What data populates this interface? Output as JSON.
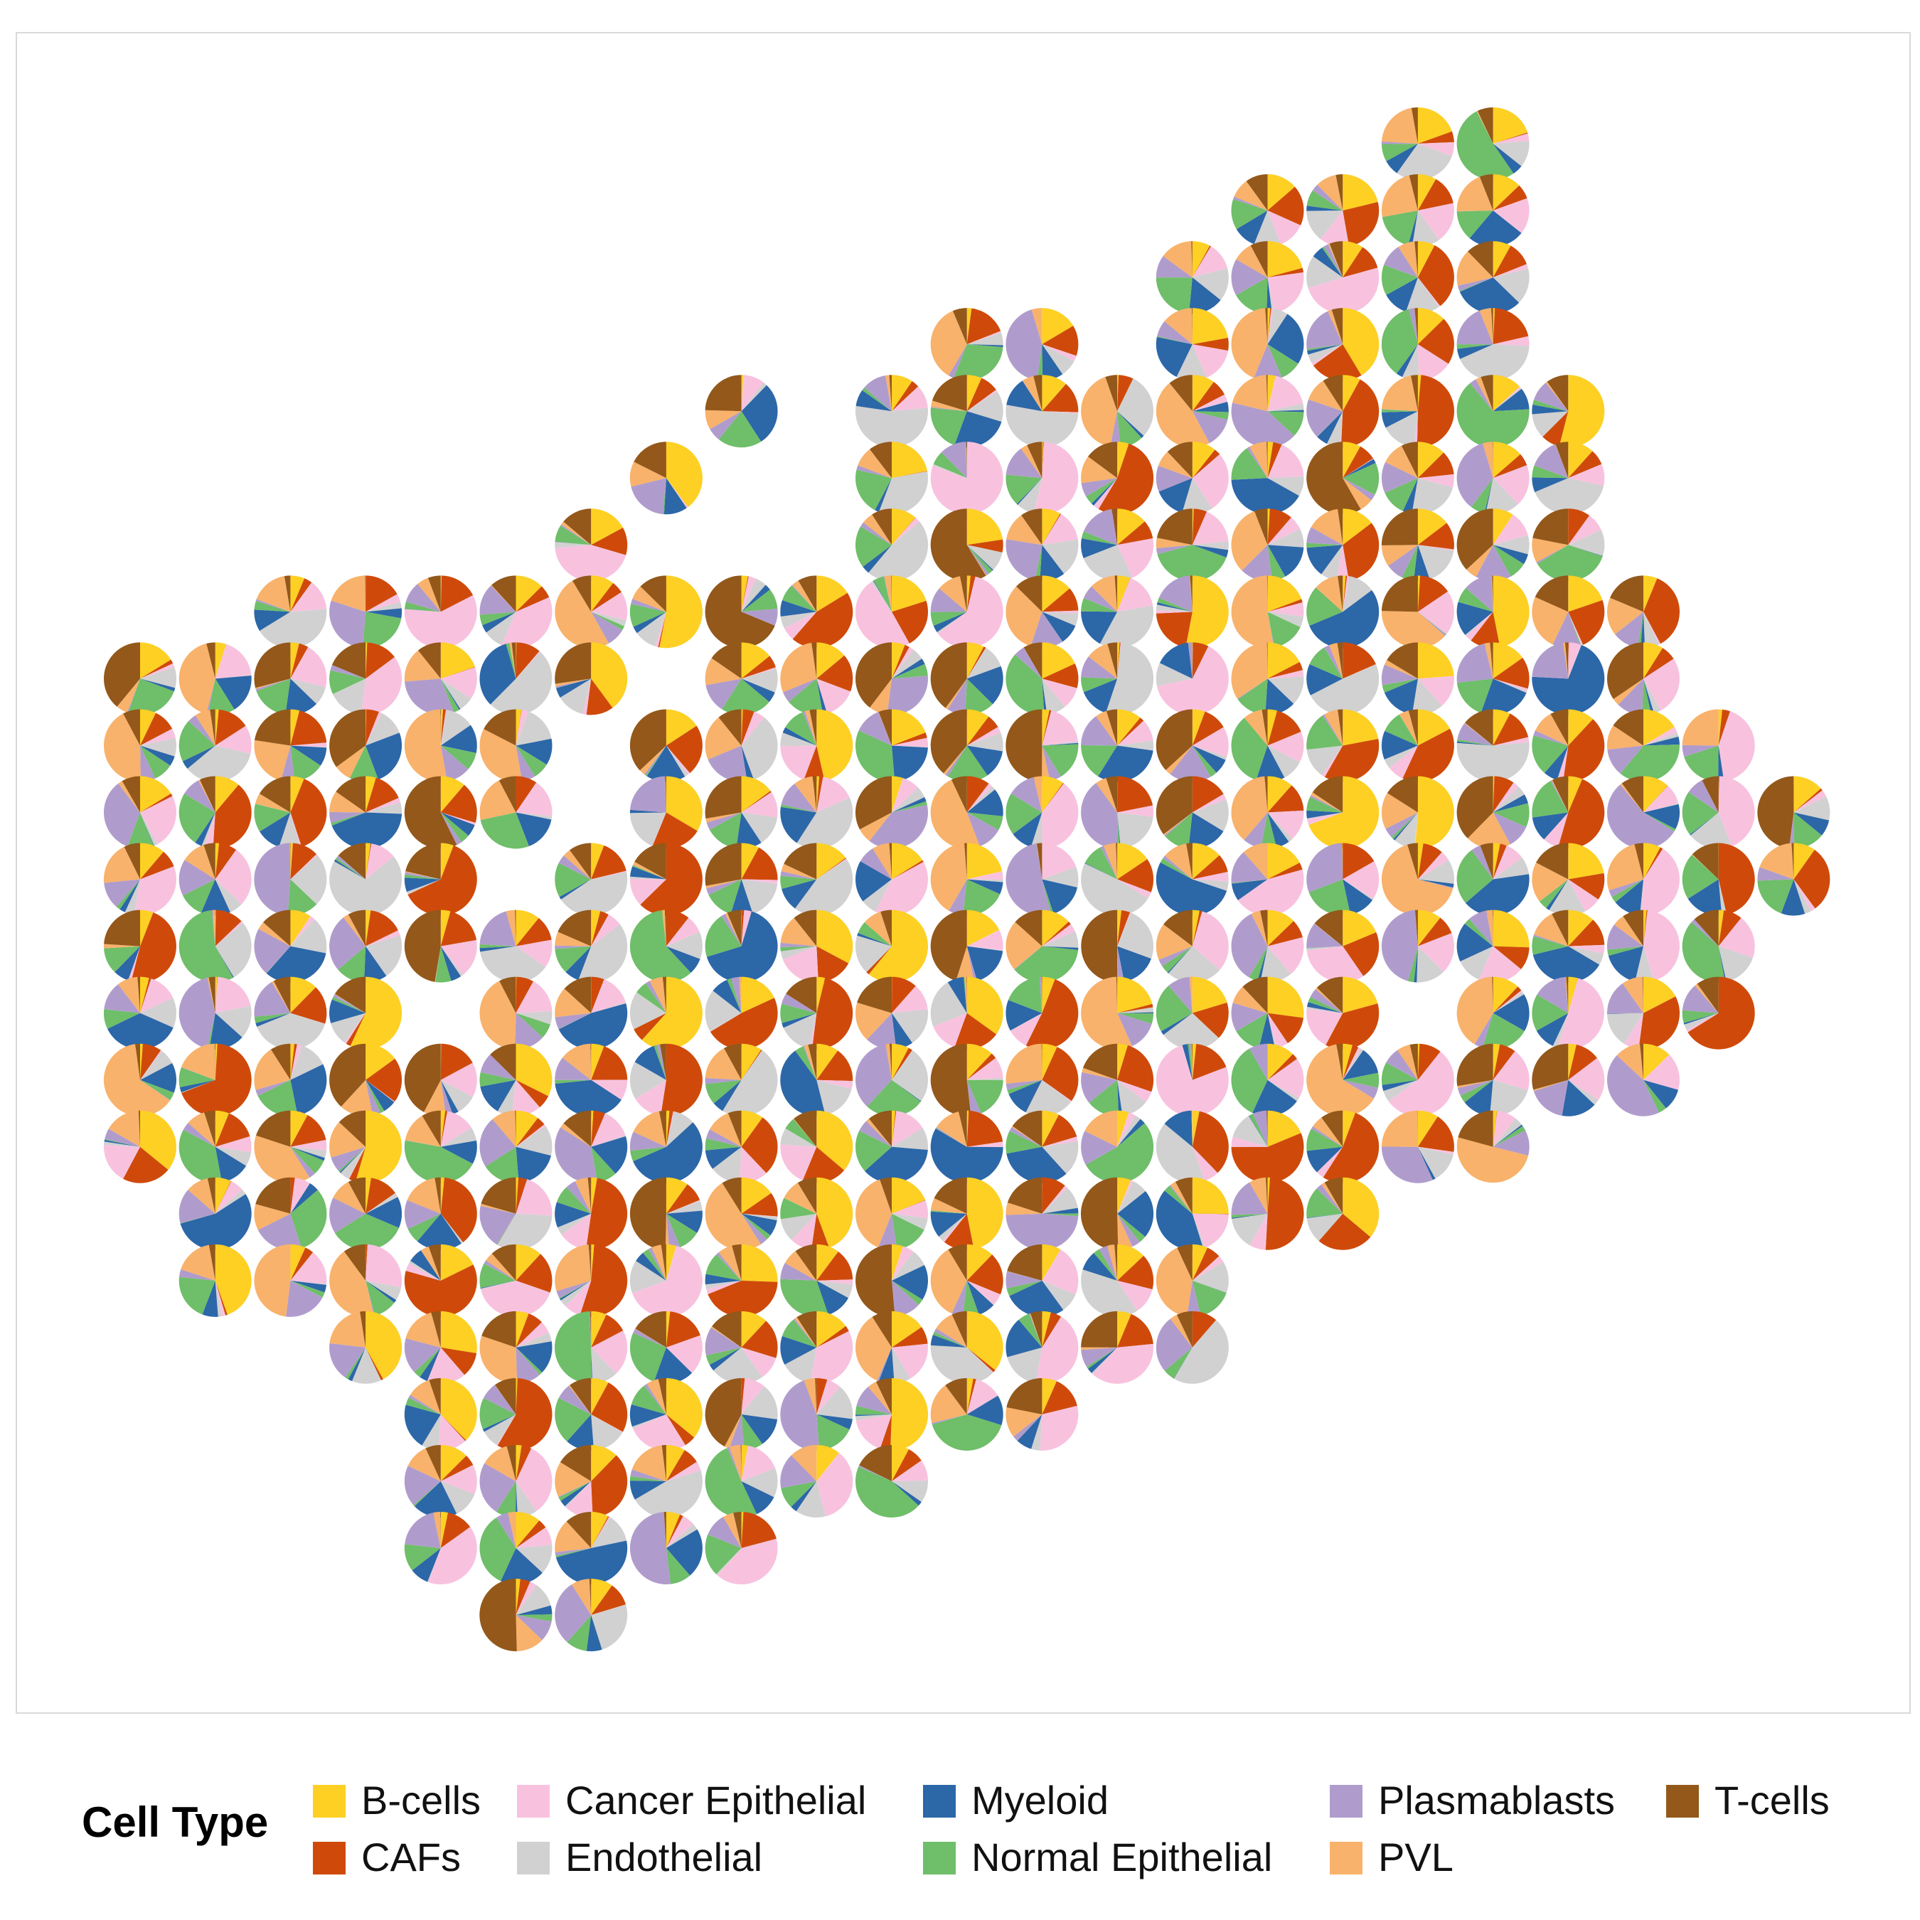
{
  "legend": {
    "title": "Cell Type",
    "entries": [
      {
        "label": "B-cells",
        "color": "#fdd023"
      },
      {
        "label": "CAFs",
        "color": "#cf4a0a"
      },
      {
        "label": "Cancer Epithelial",
        "color": "#f8c2df"
      },
      {
        "label": "Endothelial",
        "color": "#d1d1d1"
      },
      {
        "label": "Myeloid",
        "color": "#2c67a8"
      },
      {
        "label": "Normal Epithelial",
        "color": "#6fbe69"
      },
      {
        "label": "Plasmablasts",
        "color": "#b09ccc"
      },
      {
        "label": "PVL",
        "color": "#f8b26b"
      },
      {
        "label": "T-cells",
        "color": "#93581a"
      }
    ]
  },
  "chart_data": {
    "type": "pie",
    "description_kind": "spatial scatter of pie glyphs (cell-type composition per spot)",
    "categories": [
      "B-cells",
      "CAFs",
      "Cancer Epithelial",
      "Endothelial",
      "Myeloid",
      "Normal Epithelial",
      "Plasmablasts",
      "PVL",
      "T-cells"
    ],
    "colors": [
      "#fdd023",
      "#cf4a0a",
      "#f8c2df",
      "#d1d1d1",
      "#2c67a8",
      "#6fbe69",
      "#b09ccc",
      "#f8b26b",
      "#93581a"
    ],
    "grid": false,
    "legend_position": "bottom",
    "rows": [
      {
        "row": 0,
        "cols": [
          17,
          18
        ]
      },
      {
        "row": 1,
        "cols": [
          15,
          16,
          17,
          18
        ]
      },
      {
        "row": 2,
        "cols": [
          14,
          15,
          16,
          17,
          18
        ]
      },
      {
        "row": 3,
        "cols": [
          11,
          12,
          14,
          15,
          16,
          17,
          18
        ]
      },
      {
        "row": 4,
        "cols": [
          8,
          10,
          11,
          12,
          13,
          14,
          15,
          16,
          17,
          18,
          19
        ]
      },
      {
        "row": 5,
        "cols": [
          7,
          10,
          11,
          12,
          13,
          14,
          15,
          16,
          17,
          18,
          19
        ]
      },
      {
        "row": 6,
        "cols": [
          6,
          10,
          11,
          12,
          13,
          14,
          15,
          16,
          17,
          18,
          19
        ]
      },
      {
        "row": 7,
        "cols": [
          2,
          3,
          4,
          5,
          6,
          7,
          8,
          9,
          10,
          11,
          12,
          13,
          14,
          15,
          16,
          17,
          18,
          19,
          20
        ]
      },
      {
        "row": 8,
        "cols": [
          0,
          1,
          2,
          3,
          4,
          5,
          6,
          8,
          9,
          10,
          11,
          12,
          13,
          14,
          15,
          16,
          17,
          18,
          19,
          20
        ]
      },
      {
        "row": 9,
        "cols": [
          0,
          1,
          2,
          3,
          4,
          5,
          7,
          8,
          9,
          10,
          11,
          12,
          13,
          14,
          15,
          16,
          17,
          18,
          19,
          20,
          21
        ]
      },
      {
        "row": 10,
        "cols": [
          0,
          1,
          2,
          3,
          4,
          5,
          7,
          8,
          9,
          10,
          11,
          12,
          13,
          14,
          15,
          16,
          17,
          18,
          19,
          20,
          21,
          22
        ]
      },
      {
        "row": 11,
        "cols": [
          0,
          1,
          2,
          3,
          4,
          6,
          7,
          8,
          9,
          10,
          11,
          12,
          13,
          14,
          15,
          16,
          17,
          18,
          19,
          20,
          21,
          22
        ]
      },
      {
        "row": 12,
        "cols": [
          0,
          1,
          2,
          3,
          4,
          5,
          6,
          7,
          8,
          9,
          10,
          11,
          12,
          13,
          14,
          15,
          16,
          17,
          18,
          19,
          20,
          21
        ]
      },
      {
        "row": 13,
        "cols": [
          0,
          1,
          2,
          3,
          5,
          6,
          7,
          8,
          9,
          10,
          11,
          12,
          13,
          14,
          15,
          16,
          18,
          19,
          20,
          21
        ]
      },
      {
        "row": 14,
        "cols": [
          0,
          1,
          2,
          3,
          4,
          5,
          6,
          7,
          8,
          9,
          10,
          11,
          12,
          13,
          14,
          15,
          16,
          17,
          18,
          19,
          20
        ]
      },
      {
        "row": 15,
        "cols": [
          0,
          1,
          2,
          3,
          4,
          5,
          6,
          7,
          8,
          9,
          10,
          11,
          12,
          13,
          14,
          15,
          16,
          17,
          18
        ]
      },
      {
        "row": 16,
        "cols": [
          1,
          2,
          3,
          4,
          5,
          6,
          7,
          8,
          9,
          10,
          11,
          12,
          13,
          14,
          15,
          16
        ]
      },
      {
        "row": 17,
        "cols": [
          1,
          2,
          3,
          4,
          5,
          6,
          7,
          8,
          9,
          10,
          11,
          12,
          13,
          14
        ]
      },
      {
        "row": 18,
        "cols": [
          3,
          4,
          5,
          6,
          7,
          8,
          9,
          10,
          11,
          12,
          13,
          14
        ]
      },
      {
        "row": 19,
        "cols": [
          4,
          5,
          6,
          7,
          8,
          9,
          10,
          11,
          12
        ]
      },
      {
        "row": 20,
        "cols": [
          4,
          5,
          6,
          7,
          8,
          9,
          10
        ]
      },
      {
        "row": 21,
        "cols": [
          4,
          5,
          6,
          7,
          8
        ]
      },
      {
        "row": 22,
        "cols": [
          5,
          6
        ]
      }
    ]
  }
}
